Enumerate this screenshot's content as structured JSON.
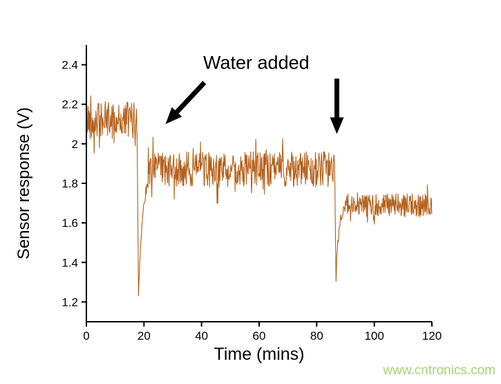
{
  "chart_data": {
    "type": "line",
    "title": "",
    "xlabel": "Time (mins)",
    "ylabel": "Sensor response (V)",
    "xlim": [
      0,
      120
    ],
    "ylim": [
      1.1,
      2.5
    ],
    "grid": false,
    "legend": null,
    "xticks": {
      "values": [
        0,
        20,
        40,
        60,
        80,
        100,
        120
      ],
      "labels": [
        "0",
        "20",
        "40",
        "60",
        "80",
        "100",
        "120"
      ]
    },
    "yticks": {
      "values": [
        1.2,
        1.4,
        1.6,
        1.8,
        2.0,
        2.2,
        2.4
      ],
      "labels": [
        "1.2",
        "1.4",
        "1.6",
        "1.8",
        "2",
        "2.2",
        "2.4"
      ]
    },
    "series": [
      {
        "name": "sensor response",
        "color": "#b5621c",
        "noise_seed": 42,
        "sample_step_min": 0.15,
        "segments": [
          {
            "kind": "noisy",
            "t_start": 0,
            "t_end": 17.6,
            "mean": 2.12,
            "noise": 0.095
          },
          {
            "kind": "dip",
            "t_start": 17.6,
            "t_end": 21.5,
            "min": 1.23,
            "recover_to": 1.86,
            "tau": 1.4
          },
          {
            "kind": "noisy",
            "t_start": 21.5,
            "t_end": 86.2,
            "mean": 1.87,
            "noise": 0.09
          },
          {
            "kind": "dip",
            "t_start": 86.2,
            "t_end": 89.5,
            "min": 1.32,
            "recover_to": 1.68,
            "tau": 0.9
          },
          {
            "kind": "noisy",
            "t_start": 89.5,
            "t_end": 120,
            "mean": 1.69,
            "noise": 0.058
          }
        ]
      }
    ],
    "annotations": [
      {
        "text": "Water added",
        "x": 59,
        "y": 2.38
      }
    ],
    "arrows": [
      {
        "from": {
          "x": 41,
          "y": 2.31
        },
        "to": {
          "x": 27.5,
          "y": 2.1
        }
      },
      {
        "from": {
          "x": 87,
          "y": 2.33
        },
        "to": {
          "x": 87,
          "y": 2.05
        }
      }
    ],
    "events": [
      {
        "time_min": 18,
        "label": "Water added",
        "effect": "sharp drop to ~1.23 V then recovery to ~1.87 V baseline"
      },
      {
        "time_min": 87,
        "label": "Water added",
        "effect": "sharp drop to ~1.32 V then recovery to ~1.69 V baseline"
      }
    ],
    "axis_color": "#000000"
  },
  "watermark": {
    "text": "www.cntronics.com",
    "color": "#9bcf63"
  }
}
